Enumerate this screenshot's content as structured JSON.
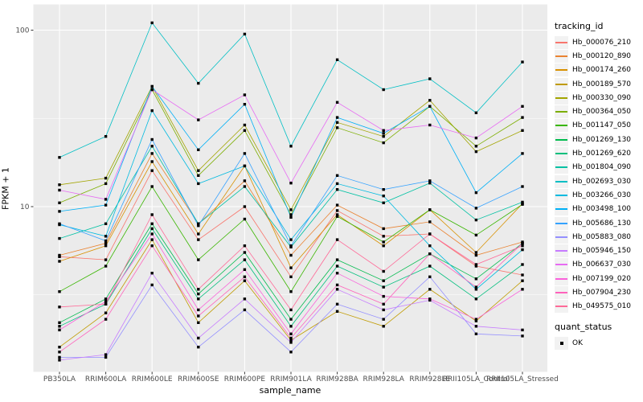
{
  "figure": {
    "x_axis_title": "sample_name",
    "y_axis_title": "FPKM + 1",
    "legend_title": "tracking_id",
    "legend2_title": "quant_status",
    "legend2_items": [
      {
        "label": "OK"
      }
    ]
  },
  "colors": {
    "panel_bg": "#EBEBEB",
    "grid": "#FFFFFF",
    "axis_text": "#4D4D4D",
    "tick_mark": "#333333",
    "legend_key_bg": "#F2F2F2",
    "marker": "#000000"
  },
  "chart_data": {
    "type": "line",
    "title": "",
    "xlabel": "sample_name",
    "ylabel": "FPKM + 1",
    "y_scale": "log10",
    "ylim": [
      1.16,
      140
    ],
    "y_major_ticks": [
      100,
      10
    ],
    "y_minor_gridlines": [
      31.62,
      3.162
    ],
    "grid": true,
    "legend_position": "right",
    "marker": "filled-black-square",
    "quant_status": "OK",
    "categories": [
      "PB350LA",
      "RRIM600LA",
      "RRIM600LE",
      "RRIM600SE",
      "RRIM600PE",
      "RRIM901LA",
      "RRIM928BA",
      "RRIM928LA",
      "RRIM928LE",
      "RRII105LA_Control",
      "RRII105LA_Stressed"
    ],
    "series": [
      {
        "name": "Hb_000076_210",
        "color": "#F8766D",
        "values": [
          5.2,
          5.0,
          16,
          6.5,
          10,
          4.0,
          9.5,
          6.8,
          7.0,
          4.6,
          4.1
        ]
      },
      {
        "name": "Hb_000120_890",
        "color": "#EA8331",
        "values": [
          5.3,
          6.2,
          20,
          8.0,
          14,
          5.3,
          10.2,
          7.5,
          8.2,
          5.3,
          6.3
        ]
      },
      {
        "name": "Hb_000174_260",
        "color": "#D89000",
        "values": [
          4.9,
          6.0,
          18,
          7.0,
          17,
          4.5,
          9.0,
          6.0,
          9.6,
          5.5,
          10.4
        ]
      },
      {
        "name": "Hb_000189_570",
        "color": "#C09B00",
        "values": [
          1.6,
          2.5,
          6.5,
          2.2,
          3.8,
          1.75,
          2.55,
          2.1,
          3.4,
          2.25,
          3.8
        ]
      },
      {
        "name": "Hb_000330_090",
        "color": "#A3A500",
        "values": [
          13.3,
          14.5,
          48,
          16,
          29,
          9.6,
          30,
          25,
          40,
          20.5,
          27
        ]
      },
      {
        "name": "Hb_000364_050",
        "color": "#7CAE00",
        "values": [
          10.5,
          13.5,
          46,
          15,
          27,
          9.0,
          28,
          23,
          37,
          22,
          32
        ]
      },
      {
        "name": "Hb_001147_050",
        "color": "#39B600",
        "values": [
          3.3,
          4.6,
          13,
          5.0,
          8.5,
          3.3,
          8.8,
          6.3,
          9.6,
          6.9,
          10.3
        ]
      },
      {
        "name": "Hb_001269_130",
        "color": "#00BB4E",
        "values": [
          2.2,
          3.0,
          8.0,
          3.2,
          5.5,
          2.3,
          5.0,
          3.8,
          5.4,
          3.9,
          6.2
        ]
      },
      {
        "name": "Hb_001269_620",
        "color": "#00BF7D",
        "values": [
          2.1,
          2.8,
          7.5,
          3.0,
          5.0,
          2.1,
          4.6,
          3.5,
          4.6,
          3.0,
          4.7
        ]
      },
      {
        "name": "Hb_001804_090",
        "color": "#00C1A3",
        "values": [
          6.6,
          8.0,
          22,
          8.0,
          13,
          5.9,
          12.5,
          10.5,
          13.6,
          8.4,
          10.6
        ]
      },
      {
        "name": "Hb_002693_030",
        "color": "#00BFC4",
        "values": [
          19,
          25,
          110,
          50,
          95,
          22,
          68,
          46,
          53,
          34,
          66
        ]
      },
      {
        "name": "Hb_003266_030",
        "color": "#00BAE0",
        "values": [
          7.9,
          6.8,
          35,
          13.5,
          17,
          6.5,
          13.5,
          11.5,
          6.0,
          3.4,
          5.7
        ]
      },
      {
        "name": "Hb_003498_100",
        "color": "#00B0F6",
        "values": [
          9.4,
          10.2,
          48,
          21,
          38,
          8.7,
          32,
          26,
          37,
          12,
          20
        ]
      },
      {
        "name": "Hb_005686_130",
        "color": "#35A2FF",
        "values": [
          8.0,
          6.4,
          24,
          7.8,
          20,
          6.0,
          15,
          12.5,
          14,
          9.8,
          13
        ]
      },
      {
        "name": "Hb_005883_080",
        "color": "#9590FF",
        "values": [
          1.4,
          1.4,
          3.6,
          1.6,
          2.6,
          1.5,
          2.8,
          2.3,
          4.0,
          1.9,
          1.85
        ]
      },
      {
        "name": "Hb_005946_150",
        "color": "#C77CFF",
        "values": [
          1.35,
          1.45,
          4.2,
          1.8,
          3.0,
          1.7,
          3.4,
          2.6,
          2.95,
          2.1,
          2.0
        ]
      },
      {
        "name": "Hb_006637_030",
        "color": "#E76BF3",
        "values": [
          12.4,
          11,
          46,
          31,
          43,
          13.6,
          39,
          27,
          29,
          24.5,
          37
        ]
      },
      {
        "name": "Hb_007199_020",
        "color": "#FA62DB",
        "values": [
          2.0,
          2.9,
          7.0,
          2.6,
          4.4,
          1.9,
          4.2,
          3.1,
          3.0,
          2.3,
          3.4
        ]
      },
      {
        "name": "Hb_007904_230",
        "color": "#FF62BC",
        "values": [
          1.5,
          2.3,
          6.0,
          2.4,
          4.0,
          1.8,
          3.6,
          2.8,
          5.4,
          3.5,
          6.2
        ]
      },
      {
        "name": "Hb_049575_010",
        "color": "#FF6A98",
        "values": [
          2.7,
          2.8,
          9.0,
          3.4,
          6.0,
          2.6,
          6.5,
          4.3,
          7.0,
          4.7,
          6.0
        ]
      }
    ]
  }
}
